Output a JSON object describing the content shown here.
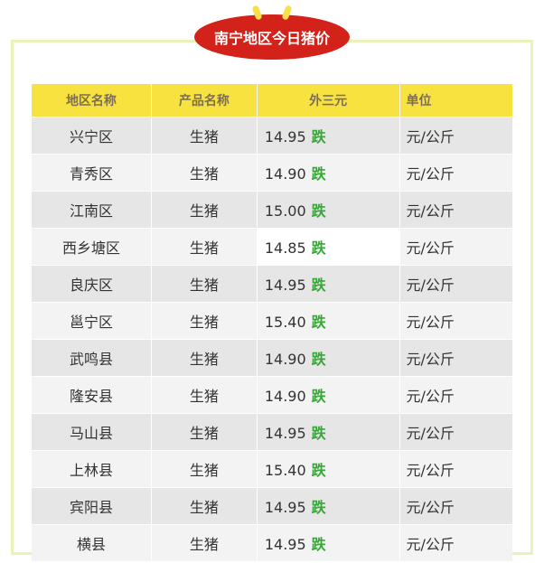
{
  "title": "南宁地区今日猪价",
  "colors": {
    "badge": "#d22219",
    "header": "#f8e23f",
    "frame": "#e9f2b8",
    "fall": "#3aa63a"
  },
  "headers": [
    "地区名称",
    "产品名称",
    "外三元",
    "单位"
  ],
  "rows": [
    {
      "region": "兴宁区",
      "product": "生猪",
      "price": "14.95",
      "trend": "跌",
      "unit": "元/公斤"
    },
    {
      "region": "青秀区",
      "product": "生猪",
      "price": "14.90",
      "trend": "跌",
      "unit": "元/公斤"
    },
    {
      "region": "江南区",
      "product": "生猪",
      "price": "15.00",
      "trend": "跌",
      "unit": "元/公斤"
    },
    {
      "region": "西乡塘区",
      "product": "生猪",
      "price": "14.85",
      "trend": "跌",
      "unit": "元/公斤"
    },
    {
      "region": "良庆区",
      "product": "生猪",
      "price": "14.95",
      "trend": "跌",
      "unit": "元/公斤"
    },
    {
      "region": "邕宁区",
      "product": "生猪",
      "price": "15.40",
      "trend": "跌",
      "unit": "元/公斤"
    },
    {
      "region": "武鸣县",
      "product": "生猪",
      "price": "14.90",
      "trend": "跌",
      "unit": "元/公斤"
    },
    {
      "region": "隆安县",
      "product": "生猪",
      "price": "14.90",
      "trend": "跌",
      "unit": "元/公斤"
    },
    {
      "region": "马山县",
      "product": "生猪",
      "price": "14.95",
      "trend": "跌",
      "unit": "元/公斤"
    },
    {
      "region": "上林县",
      "product": "生猪",
      "price": "15.40",
      "trend": "跌",
      "unit": "元/公斤"
    },
    {
      "region": "宾阳县",
      "product": "生猪",
      "price": "14.95",
      "trend": "跌",
      "unit": "元/公斤"
    },
    {
      "region": "横县",
      "product": "生猪",
      "price": "14.95",
      "trend": "跌",
      "unit": "元/公斤"
    }
  ]
}
